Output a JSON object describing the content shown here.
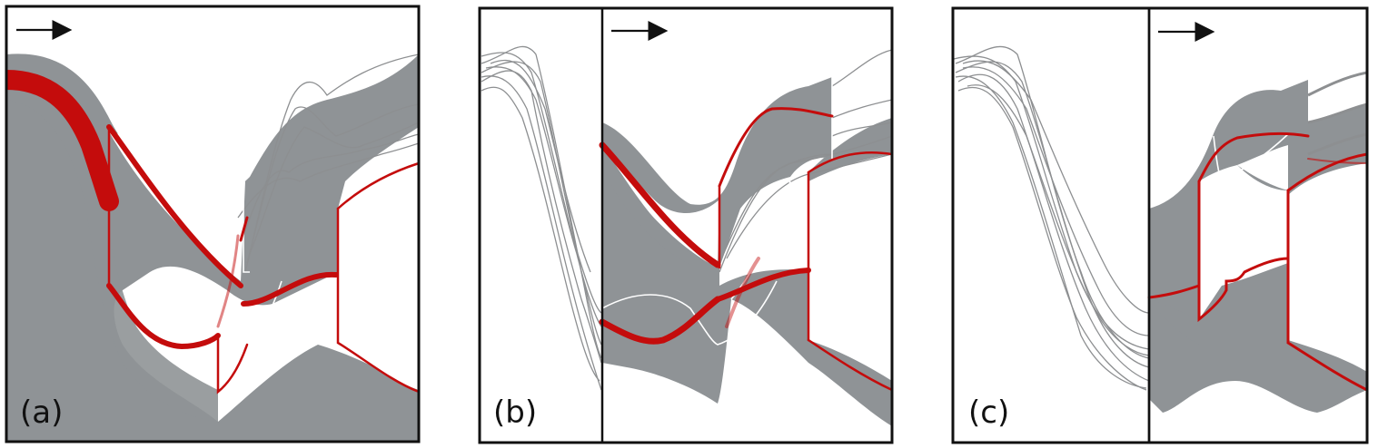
{
  "figure": {
    "panels": [
      {
        "id": "a",
        "label": "(a)",
        "has_arrow": true
      },
      {
        "id": "b",
        "label": "(b)",
        "has_arrow": true
      },
      {
        "id": "c",
        "label": "(c)",
        "has_arrow": true
      }
    ],
    "colors": {
      "band": "#8f9396",
      "trajectory_thin": "#8d8f91",
      "highlight": "#c40c0c",
      "frame": "#111111"
    },
    "icons": [
      "right-arrow-icon"
    ]
  }
}
